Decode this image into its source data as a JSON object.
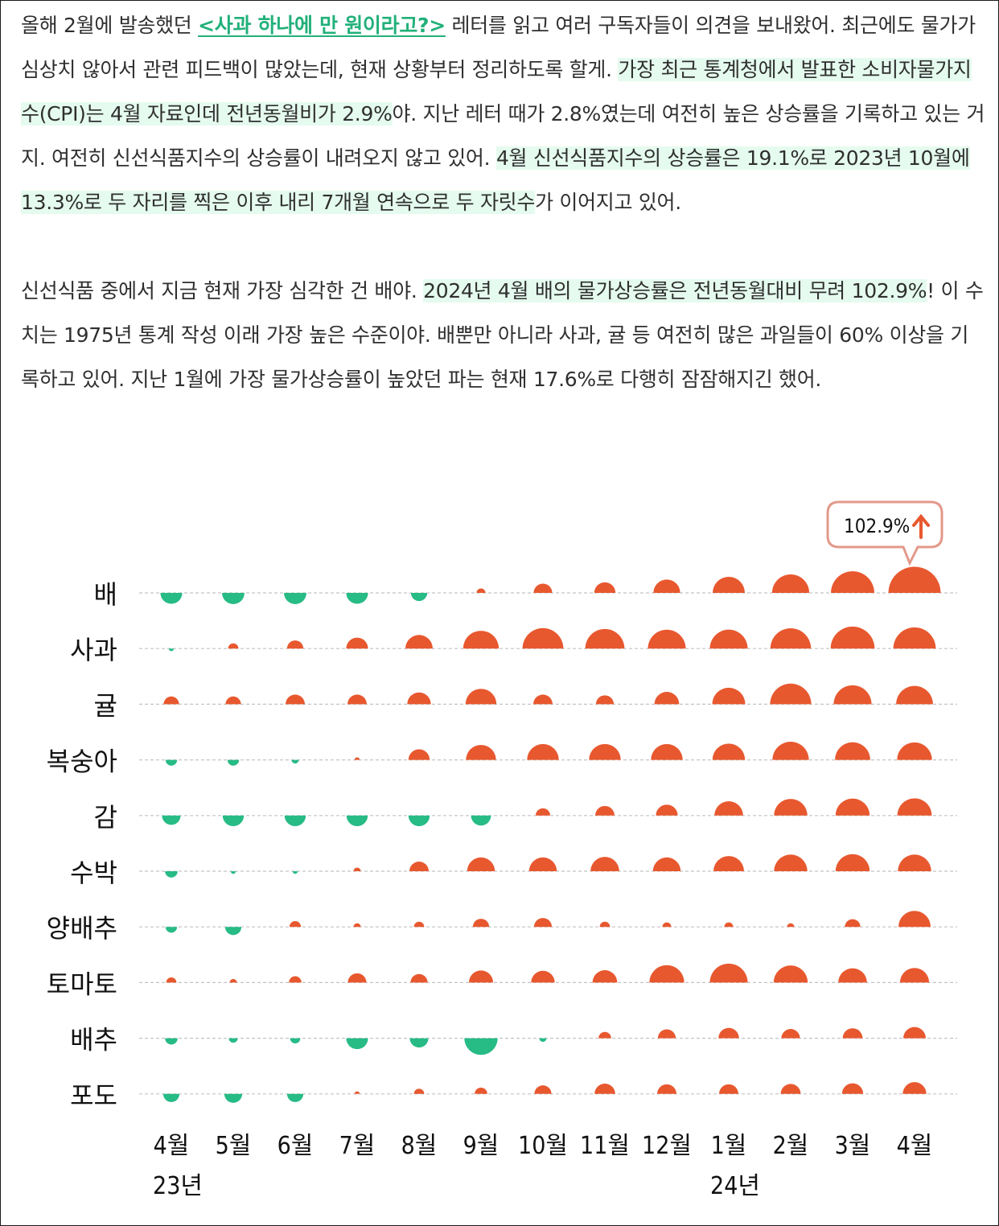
{
  "article": {
    "p1_a": "올해 2월에 발송했던 ",
    "p1_link": "<사과 하나에 만 원이라고?>",
    "p1_b": " 레터를 읽고 여러 구독자들이 의견을 보내왔어. 최근에도 물가가 심상치 않아서 관련 피드백이 많았는데, 현재 상황부터 정리하도록 할게. ",
    "p1_hl1": "가장 최근 통계청에서 발표한 소비자물가지수(CPI)는 4월 자료인데 전년동월비가 2.9%",
    "p1_c": "야. 지난 레터 때가 2.8%였는데 여전히 높은 상승률을 기록하고 있는 거지. 여전히 신선식품지수의 상승률이 내려오지 않고 있어. ",
    "p1_hl2": "4월 신선식품지수의 상승률은 19.1%로 2023년 10월에 13.3%로 두 자리를 찍은 이후 내리 7개월 연속으로 두 자릿수",
    "p1_d": "가 이어지고 있어.",
    "p2_a": "신선식품 중에서 지금 현재 가장 심각한 건 배야. ",
    "p2_hl": "2024년 4월 배의 물가상승률은 전년동월대비 무려 102.9%",
    "p2_b": "! 이 수치는 1975년 통계 작성 이래 가장 높은 수준이야. 배뿐만 아니라 사과, 귤 등 여전히 많은 과일들이 60% 이상을 기록하고 있어. 지난 1월에 가장 물가상승률이 높았던 파는 현재 17.6%로 다행히 잠잠해지긴 했어."
  },
  "chart_data": {
    "type": "semicircle-dot-matrix",
    "categories": [
      "4월",
      "5월",
      "6월",
      "7월",
      "8월",
      "9월",
      "10월",
      "11월",
      "12월",
      "1월",
      "2월",
      "3월",
      "4월"
    ],
    "year_labels": [
      {
        "index": 0,
        "label": "23년"
      },
      {
        "index": 9,
        "label": "24년"
      }
    ],
    "callout": {
      "row": 0,
      "col": 12,
      "label": "102.9%",
      "icon": "up-arrow-icon"
    },
    "colors": {
      "positive": "#e8582f",
      "negative": "#27bb86",
      "grid": "#c4c4c4",
      "callout_border": "#e3998a"
    },
    "note": "values are year-over-year % change estimated from marker size; negative = green (below line), positive = orange (above line)",
    "series": [
      {
        "name": "배",
        "values": [
          -18,
          -19,
          -19,
          -18,
          -10,
          3,
          13,
          17,
          27,
          39,
          52,
          71,
          102.9
        ]
      },
      {
        "name": "사과",
        "values": [
          -1,
          4,
          10,
          18,
          28,
          48,
          63,
          58,
          54,
          54,
          62,
          73,
          68
        ]
      },
      {
        "name": "귤",
        "values": [
          9,
          9,
          14,
          14,
          21,
          36,
          14,
          12,
          23,
          41,
          64,
          54,
          51
        ]
      },
      {
        "name": "복숭아",
        "values": [
          -5,
          -5,
          -2,
          1,
          17,
          34,
          38,
          38,
          38,
          40,
          50,
          47,
          46
        ]
      },
      {
        "name": "감",
        "values": [
          -13,
          -17,
          -17,
          -17,
          -17,
          -15,
          8,
          14,
          18,
          31,
          42,
          44,
          45
        ]
      },
      {
        "name": "수박",
        "values": [
          -6,
          -1,
          -1,
          2,
          14,
          29,
          29,
          31,
          29,
          35,
          42,
          44,
          42
        ]
      },
      {
        "name": "양배추",
        "values": [
          -5,
          -10,
          5,
          2,
          4,
          10,
          12,
          4,
          3,
          3,
          2,
          9,
          39
        ]
      },
      {
        "name": "토마토",
        "values": [
          4,
          2,
          6,
          13,
          11,
          22,
          21,
          23,
          46,
          54,
          44,
          31,
          32
        ]
      },
      {
        "name": "배추",
        "values": [
          -6,
          -3,
          -4,
          -18,
          -13,
          -42,
          -2,
          6,
          12,
          16,
          13,
          15,
          19
        ]
      },
      {
        "name": "포도",
        "values": [
          -10,
          -12,
          -10,
          1,
          4,
          6,
          11,
          16,
          14,
          14,
          15,
          17,
          21
        ]
      }
    ]
  }
}
